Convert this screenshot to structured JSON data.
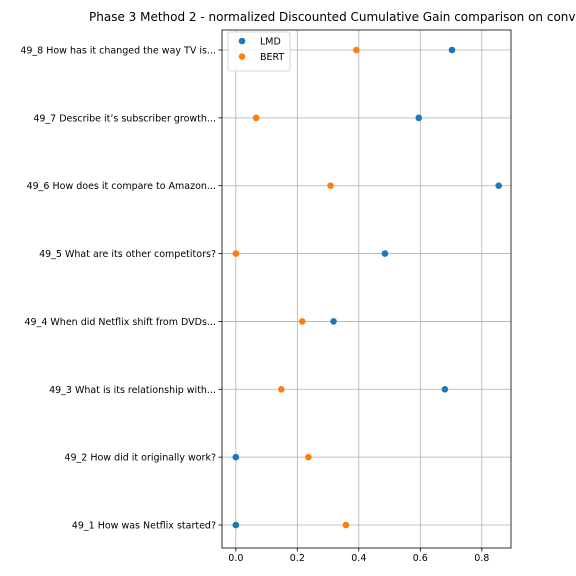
{
  "chart_data": {
    "type": "scatter",
    "title": "Phase 3 Method 2 - normalized Discounted Cumulative Gain comparison on conv",
    "xlabel": "",
    "ylabel": "",
    "xlim": [
      -0.045,
      0.895
    ],
    "x_ticks": [
      0.0,
      0.2,
      0.4,
      0.6,
      0.8
    ],
    "x_tick_labels": [
      "0.0",
      "0.2",
      "0.4",
      "0.6",
      "0.8"
    ],
    "grid": true,
    "legend_position": "top-left",
    "categories": [
      "49_1 How was Netflix started?",
      "49_2 How did it originally work?",
      "49_3 What is its relationship with...",
      "49_4 When did Netflix shift from DVDs...",
      "49_5 What are its other competitors?",
      "49_6 How does it compare to Amazon...",
      "49_7 Describe it’s subscriber growth...",
      "49_8 How has it changed the way TV is..."
    ],
    "series": [
      {
        "name": "LMD",
        "color": "#1f77b4",
        "values": [
          0.0,
          0.0,
          0.68,
          0.318,
          0.485,
          0.855,
          0.595,
          0.703
        ]
      },
      {
        "name": "BERT",
        "color": "#ff7f0e",
        "values": [
          0.358,
          0.236,
          0.148,
          0.216,
          0.0,
          0.308,
          0.066,
          0.392
        ]
      }
    ]
  }
}
